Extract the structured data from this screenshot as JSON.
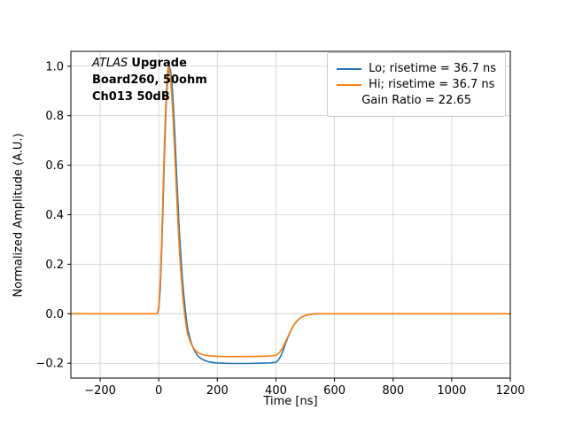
{
  "annotation": {
    "line1_italic": "ATLAS",
    "line1_bold": "Upgrade",
    "line2": "Board260, 50ohm",
    "line3": "Ch013 50dB"
  },
  "chart_data": {
    "type": "line",
    "title": "",
    "xlabel": "Time [ns]",
    "ylabel": "Normalized Amplitude (A.U.)",
    "xlim": [
      -300,
      1200
    ],
    "ylim": [
      -0.26,
      1.06
    ],
    "grid": true,
    "legend_position": "upper right",
    "legend_extra": "Gain Ratio = 22.65",
    "x_ticks": [
      {
        "v": -200,
        "label": "−200"
      },
      {
        "v": 0,
        "label": "0"
      },
      {
        "v": 200,
        "label": "200"
      },
      {
        "v": 400,
        "label": "400"
      },
      {
        "v": 600,
        "label": "600"
      },
      {
        "v": 800,
        "label": "800"
      },
      {
        "v": 1000,
        "label": "1000"
      },
      {
        "v": 1200,
        "label": "1200"
      }
    ],
    "y_ticks": [
      {
        "v": -0.2,
        "label": "−0.2"
      },
      {
        "v": 0.0,
        "label": "0.0"
      },
      {
        "v": 0.2,
        "label": "0.2"
      },
      {
        "v": 0.4,
        "label": "0.4"
      },
      {
        "v": 0.6,
        "label": "0.6"
      },
      {
        "v": 0.8,
        "label": "0.8"
      },
      {
        "v": 1.0,
        "label": "1.0"
      }
    ],
    "series": [
      {
        "name": "Lo; risetime = 36.7 ns",
        "color": "#1f77b4",
        "x": [
          -300,
          -20,
          -5,
          0,
          5,
          10,
          15,
          20,
          25,
          30,
          35,
          40,
          45,
          50,
          55,
          60,
          65,
          70,
          75,
          80,
          85,
          90,
          95,
          100,
          110,
          120,
          130,
          140,
          155,
          170,
          185,
          200,
          220,
          250,
          300,
          350,
          380,
          400,
          408,
          416,
          424,
          432,
          440,
          450,
          460,
          470,
          480,
          490,
          500,
          515,
          530,
          550,
          575,
          600,
          700,
          800,
          900,
          1000,
          1100,
          1200
        ],
        "y": [
          0,
          0,
          0,
          0.02,
          0.1,
          0.26,
          0.46,
          0.66,
          0.84,
          0.95,
          1.0,
          0.985,
          0.93,
          0.84,
          0.72,
          0.59,
          0.46,
          0.34,
          0.24,
          0.15,
          0.08,
          0.02,
          -0.03,
          -0.07,
          -0.115,
          -0.145,
          -0.165,
          -0.178,
          -0.188,
          -0.194,
          -0.197,
          -0.199,
          -0.2,
          -0.201,
          -0.201,
          -0.2,
          -0.199,
          -0.196,
          -0.188,
          -0.172,
          -0.15,
          -0.124,
          -0.098,
          -0.07,
          -0.048,
          -0.032,
          -0.02,
          -0.012,
          -0.007,
          -0.003,
          -0.001,
          0,
          0,
          0,
          0,
          0,
          0,
          0,
          0,
          0
        ]
      },
      {
        "name": "Hi; risetime = 36.7 ns",
        "color": "#ff7f0e",
        "x": [
          -300,
          -20,
          -5,
          0,
          5,
          10,
          15,
          20,
          25,
          30,
          33,
          38,
          43,
          48,
          53,
          58,
          63,
          68,
          73,
          78,
          83,
          88,
          93,
          98,
          108,
          118,
          128,
          140,
          152,
          166,
          182,
          200,
          220,
          250,
          300,
          350,
          380,
          400,
          410,
          420,
          430,
          440,
          450,
          460,
          470,
          480,
          490,
          500,
          515,
          530,
          550,
          575,
          600,
          700,
          800,
          900,
          1000,
          1100,
          1200
        ],
        "y": [
          0,
          0,
          0,
          0.03,
          0.13,
          0.3,
          0.51,
          0.71,
          0.88,
          0.98,
          1.0,
          0.975,
          0.91,
          0.81,
          0.69,
          0.56,
          0.43,
          0.31,
          0.21,
          0.13,
          0.06,
          0.0,
          -0.045,
          -0.08,
          -0.115,
          -0.138,
          -0.152,
          -0.161,
          -0.166,
          -0.169,
          -0.171,
          -0.172,
          -0.173,
          -0.173,
          -0.173,
          -0.172,
          -0.171,
          -0.168,
          -0.16,
          -0.143,
          -0.12,
          -0.095,
          -0.069,
          -0.047,
          -0.031,
          -0.02,
          -0.012,
          -0.007,
          -0.003,
          -0.001,
          0,
          0,
          0,
          0,
          0,
          0,
          0,
          0,
          0
        ]
      }
    ]
  }
}
